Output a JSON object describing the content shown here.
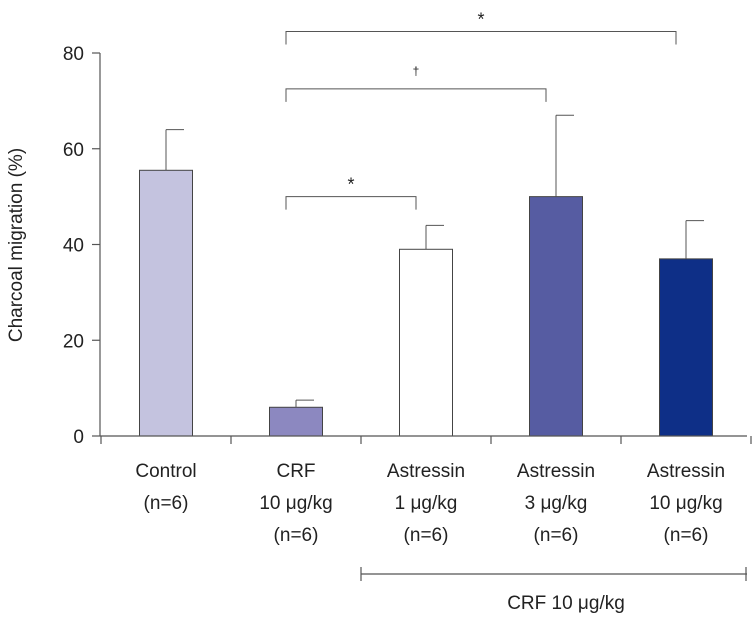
{
  "chart_data": {
    "type": "bar",
    "title": "",
    "xlabel": "",
    "ylabel": "Charcoal migration (%)",
    "ylim": [
      0,
      80
    ],
    "yticks": [
      0,
      20,
      40,
      60,
      80
    ],
    "categories": [
      {
        "lines": [
          "Control",
          "(n=6)"
        ]
      },
      {
        "lines": [
          "CRF",
          "10 μg/kg",
          "(n=6)"
        ]
      },
      {
        "lines": [
          "Astressin",
          "1 μg/kg",
          "(n=6)"
        ]
      },
      {
        "lines": [
          "Astressin",
          "3 μg/kg",
          "(n=6)"
        ]
      },
      {
        "lines": [
          "Astressin",
          "10 μg/kg",
          "(n=6)"
        ]
      }
    ],
    "values": [
      55.5,
      6,
      39,
      50,
      37
    ],
    "errors": [
      8.5,
      1.5,
      5,
      17,
      8
    ],
    "bar_colors": [
      "#c4c3df",
      "#8c88c0",
      "#ffffff",
      "#565ca2",
      "#0e2f87"
    ],
    "group_bracket": {
      "label": "CRF 10 μg/kg",
      "from_category": 2,
      "to_category": 4
    },
    "significance": [
      {
        "from": 1,
        "to": 2,
        "symbol": "*",
        "level": 50
      },
      {
        "from": 1,
        "to": 3,
        "symbol": "†",
        "level": 72.5
      },
      {
        "from": 1,
        "to": 4,
        "symbol": "*",
        "level": 84.5
      }
    ]
  }
}
